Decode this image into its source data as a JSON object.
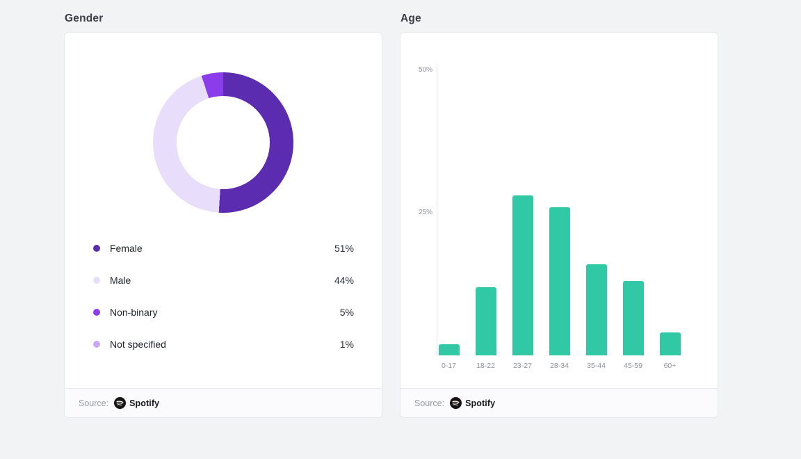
{
  "page": {
    "background": "#f2f3f5"
  },
  "gender_card": {
    "title": "Gender",
    "legend": [
      {
        "label": "Female",
        "value": "51%"
      },
      {
        "label": "Male",
        "value": "44%"
      },
      {
        "label": "Non-binary",
        "value": "5%"
      },
      {
        "label": "Not specified",
        "value": "1%"
      }
    ],
    "source_label": "Source:",
    "brand": "Spotify"
  },
  "age_card": {
    "title": "Age",
    "yticks": [
      "50%",
      "25%"
    ],
    "categories": [
      "0-17",
      "18-22",
      "23-27",
      "28-34",
      "35-44",
      "45-59",
      "60+"
    ],
    "source_label": "Source:",
    "brand": "Spotify"
  },
  "chart_data": [
    {
      "type": "pie",
      "donut": true,
      "title": "Gender",
      "labels": [
        "Female",
        "Male",
        "Non-binary",
        "Not specified"
      ],
      "values": [
        51,
        44,
        5,
        1
      ],
      "unit": "%",
      "colors": [
        "#5b2bb0",
        "#e8ddfb",
        "#8b3dec",
        "#c9a9f5"
      ],
      "legend_position": "bottom",
      "source": "Spotify"
    },
    {
      "type": "bar",
      "title": "Age",
      "categories": [
        "0-17",
        "18-22",
        "23-27",
        "28-34",
        "35-44",
        "45-59",
        "60+"
      ],
      "values": [
        2,
        12,
        28,
        26,
        16,
        13,
        4
      ],
      "unit": "%",
      "ylim": [
        0,
        50
      ],
      "yticks": [
        50,
        25
      ],
      "bar_color": "#31c8a6",
      "grid": false,
      "source": "Spotify"
    }
  ]
}
